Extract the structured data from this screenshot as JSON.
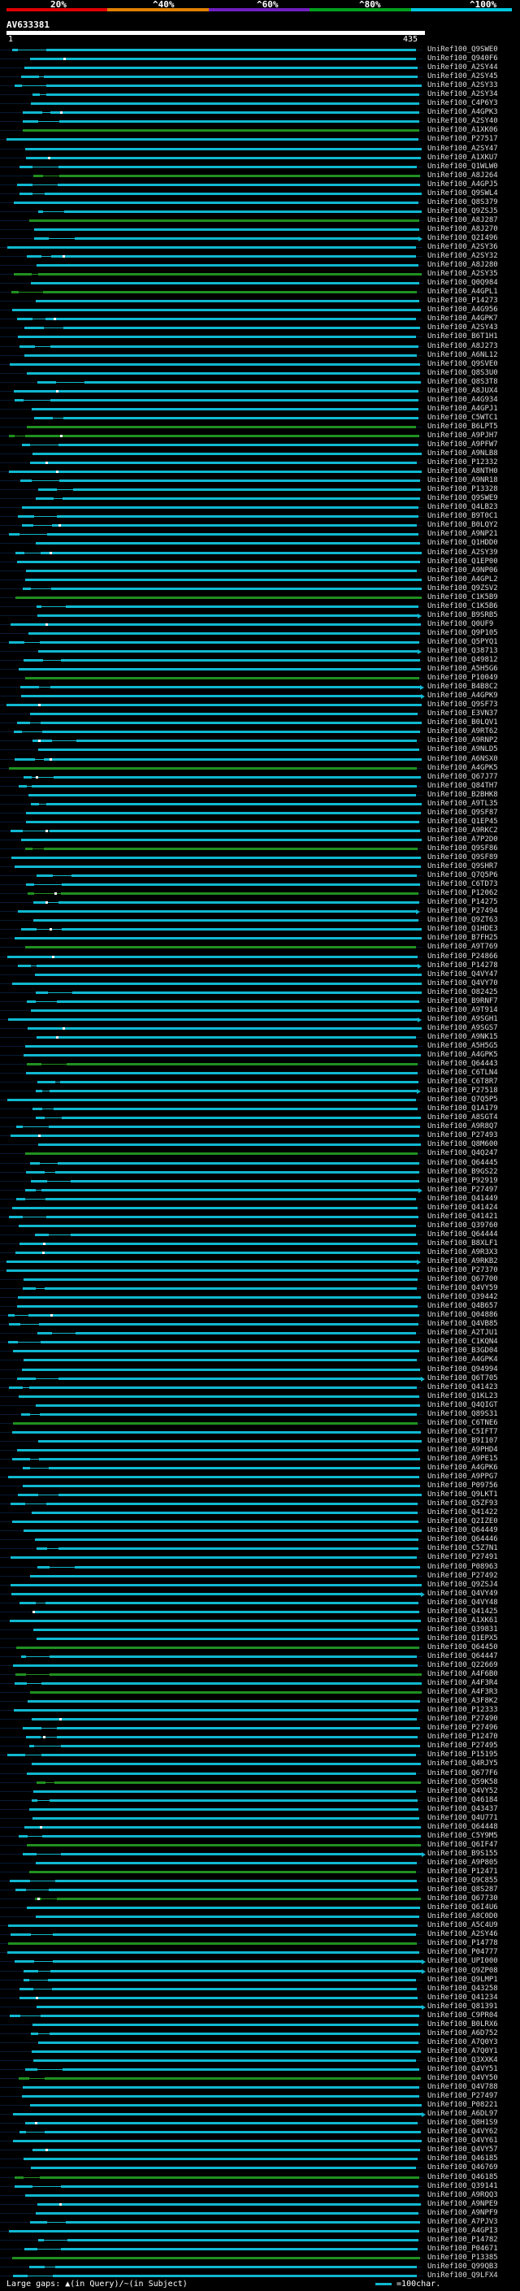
{
  "header": {
    "percent_labels": [
      "20%",
      "^40%",
      "^60%",
      "^80%",
      "^100%"
    ],
    "query_id": "AV633381",
    "start_pos": "1",
    "end_pos": "435"
  },
  "colors": {
    "scale": [
      "#e00000",
      "#e08000",
      "#7020c0",
      "#00a020",
      "#00c8e0"
    ],
    "hit_high": "#10b8d0",
    "hit_low": "#209020",
    "gap": "#ffffff"
  },
  "legend": {
    "text": "Large gaps: ▲(in Query)/~(in Subject)",
    "scale_text": "=100char."
  },
  "hits": [
    "UniRef100_Q9SWE0",
    "UniRef100_Q940F6",
    "UniRef100_A2SY44",
    "UniRef100_A2SY45",
    "UniRef100_A2SY33",
    "UniRef100_A2SY34",
    "UniRef100_C4P6Y3",
    "UniRef100_A4GPK3",
    "UniRef100_A2SY40",
    "UniRef100_A1XK06",
    "UniRef100_P27517",
    "UniRef100_A2SY47",
    "UniRef100_A1XKU7",
    "UniRef100_Q1WLW0",
    "UniRef100_A8J264",
    "UniRef100_A4GPJ5",
    "UniRef100_Q9SWL4",
    "UniRef100_Q8S379",
    "UniRef100_Q9ZSJ5",
    "UniRef100_A8J287",
    "UniRef100_A8J270",
    "UniRef100_Q2I496",
    "UniRef100_A2SY36",
    "UniRef100_A2SY32",
    "UniRef100_A8J280",
    "UniRef100_A2SY35",
    "UniRef100_Q0Q984",
    "UniRef100_A4GPL1",
    "UniRef100_P14273",
    "UniRef100_A4G956",
    "UniRef100_A4GPK7",
    "UniRef100_A2SY43",
    "UniRef100_B6T1H1",
    "UniRef100_A8J273",
    "UniRef100_A6NL12",
    "UniRef100_Q9SVE0",
    "UniRef100_Q8S3U0",
    "UniRef100_Q8S3T8",
    "UniRef100_A8JUX4",
    "UniRef100_A4G934",
    "UniRef100_A4GPJ1",
    "UniRef100_C5WTC1",
    "UniRef100_B6LPT5",
    "UniRef100_A9PJH7",
    "UniRef100_A9PFW7",
    "UniRef100_A9NLB8",
    "UniRef100_P12332",
    "UniRef100_A8NTH0",
    "UniRef100_A9NR18",
    "UniRef100_P13328",
    "UniRef100_Q9SWE9",
    "UniRef100_Q4LB23",
    "UniRef100_B9T0C1",
    "UniRef100_B0LQY2",
    "UniRef100_A9NP21",
    "UniRef100_Q1HDD0",
    "UniRef100_A2SY39",
    "UniRef100_Q1EP00",
    "UniRef100_A9NP06",
    "UniRef100_A4GPL2",
    "UniRef100_Q9ZSV2",
    "UniRef100_C1K5B9",
    "UniRef100_C1K5B6",
    "UniRef100_B9SRB5",
    "UniRef100_Q0UF9",
    "UniRef100_Q9P105",
    "UniRef100_Q5PYQ1",
    "UniRef100_Q38713",
    "UniRef100_Q49812",
    "UniRef100_A5H5G6",
    "UniRef100_P10049",
    "UniRef100_B4B8C2",
    "UniRef100_A4GPK9",
    "UniRef100_Q9SF73",
    "UniRef100_E3VN37",
    "UniRef100_B0LQV1",
    "UniRef100_A9RT62",
    "UniRef100_A9RNP2",
    "UniRef100_A9NLD5",
    "UniRef100_A6NSX0",
    "UniRef100_A4GPK5",
    "UniRef100_Q67J77",
    "UniRef100_Q84TH7",
    "UniRef100_B2BHK8",
    "UniRef100_A9TL35",
    "UniRef100_Q9SF87",
    "UniRef100_Q1EP45",
    "UniRef100_A9RKC2",
    "UniRef100_A7P2D0",
    "UniRef100_Q9SF86",
    "UniRef100_Q9SF89",
    "UniRef100_Q9SHR7",
    "UniRef100_Q7Q5P6",
    "UniRef100_C6TD73",
    "UniRef100_P12062",
    "UniRef100_P14275",
    "UniRef100_P27494",
    "UniRef100_Q9ZT63",
    "UniRef100_Q1HDE3",
    "UniRef100_B7FH25",
    "UniRef100_A9T769",
    "UniRef100_P24866",
    "UniRef100_P14278",
    "UniRef100_Q4VY47",
    "UniRef100_Q4VY70",
    "UniRef100_O82425",
    "UniRef100_B9RNF7",
    "UniRef100_A9T914",
    "UniRef100_A9SGH1",
    "UniRef100_A9SGS7",
    "UniRef100_A9NK15",
    "UniRef100_A5H5G5",
    "UniRef100_A4GPK5",
    "UniRef100_Q64443",
    "UniRef100_C6TLN4",
    "UniRef100_C6T8R7",
    "UniRef100_P27518",
    "UniRef100_Q7Q5P5",
    "UniRef100_Q1A179",
    "UniRef100_A8SGT4",
    "UniRef100_A9R8Q7",
    "UniRef100_P27493",
    "UniRef100_Q8M600",
    "UniRef100_Q4Q247",
    "UniRef100_Q64445",
    "UniRef100_B9GS22",
    "UniRef100_P92919",
    "UniRef100_P27497",
    "UniRef100_Q41449",
    "UniRef100_Q41424",
    "UniRef100_Q41421",
    "UniRef100_Q39760",
    "UniRef100_Q64444",
    "UniRef100_B8XLF1",
    "UniRef100_A9R3X3",
    "UniRef100_A9RKB2",
    "UniRef100_P27370",
    "UniRef100_Q67700",
    "UniRef100_Q4VY59",
    "UniRef100_Q39442",
    "UniRef100_Q4B657",
    "UniRef100_Q04886",
    "UniRef100_Q4VB85",
    "UniRef100_A2TJU1",
    "UniRef100_C1KQN4",
    "UniRef100_B3GD04",
    "UniRef100_A4GPK4",
    "UniRef100_Q94994",
    "UniRef100_Q6T705",
    "UniRef100_Q41423",
    "UniRef100_Q1KL23",
    "UniRef100_Q4QIGT",
    "UniRef100_Q89S31",
    "UniRef100_C6TNE6",
    "UniRef100_C5IFT7",
    "UniRef100_B9I107",
    "UniRef100_A9PHD4",
    "UniRef100_A9PE15",
    "UniRef100_A4GPK6",
    "UniRef100_A9PPG7",
    "UniRef100_P09756",
    "UniRef100_Q9LKT1",
    "UniRef100_Q5ZF93",
    "UniRef100_Q41422",
    "UniRef100_Q2IZE0",
    "UniRef100_Q64449",
    "UniRef100_Q64446",
    "UniRef100_C5Z7N1",
    "UniRef100_P27491",
    "UniRef100_P08963",
    "UniRef100_P27492",
    "UniRef100_Q9ZSJ4",
    "UniRef100_Q4VY49",
    "UniRef100_Q4VY48",
    "UniRef100_Q41425",
    "UniRef100_A1XK61",
    "UniRef100_Q39831",
    "UniRef100_Q1EPX5",
    "UniRef100_Q64450",
    "UniRef100_Q64447",
    "UniRef100_Q22669",
    "UniRef100_A4F6B0",
    "UniRef100_A4F3R4",
    "UniRef100_A4F3R3",
    "UniRef100_A3F8K2",
    "UniRef100_P12333",
    "UniRef100_P27490",
    "UniRef100_P27496",
    "UniRef100_P12470",
    "UniRef100_P27495",
    "UniRef100_P15195",
    "UniRef100_Q4RJY5",
    "UniRef100_Q677F6",
    "UniRef100_Q59K58",
    "UniRef100_Q4VY52",
    "UniRef100_Q46184",
    "UniRef100_Q43437",
    "UniRef100_Q4U771",
    "UniRef100_Q64448",
    "UniRef100_C5Y9M5",
    "UniRef100_Q6IF47",
    "UniRef100_B9S155",
    "UniRef100_A9P805",
    "UniRef100_P12471",
    "UniRef100_Q9C855",
    "UniRef100_Q8S287",
    "UniRef100_Q67730",
    "UniRef100_Q6I4U6",
    "UniRef100_A8C0D0",
    "UniRef100_A5C4U9",
    "UniRef100_A2SY46",
    "UniRef100_P14778",
    "UniRef100_P04777",
    "UniRef100_UPI000",
    "UniRef100_Q9ZP08",
    "UniRef100_Q9LMP1",
    "UniRef100_Q43258",
    "UniRef100_Q41234",
    "UniRef100_Q81391",
    "UniRef100_C9PR04",
    "UniRef100_B0LRX6",
    "UniRef100_A6D752",
    "UniRef100_A7Q0Y3",
    "UniRef100_A7Q0Y1",
    "UniRef100_Q3XXK4",
    "UniRef100_Q4VY51",
    "UniRef100_Q4VY50",
    "UniRef100_Q4V788",
    "UniRef100_P27497",
    "UniRef100_P08221",
    "UniRef100_A6DL97",
    "UniRef100_Q8H1S9",
    "UniRef100_Q4VY62",
    "UniRef100_Q4VY61",
    "UniRef100_Q4VY57",
    "UniRef100_Q46185",
    "UniRef100_Q46769",
    "UniRef100_Q46185",
    "UniRef100_Q39141",
    "UniRef100_A9RQQ3",
    "UniRef100_A9NPE9",
    "UniRef100_A9NPF9",
    "UniRef100_A7PJV3",
    "UniRef100_A4GPI3",
    "UniRef100_P14782",
    "UniRef100_P04671",
    "UniRef100_P13385",
    "UniRef100_Q99QB3",
    "UniRef100_Q9LFX4"
  ]
}
